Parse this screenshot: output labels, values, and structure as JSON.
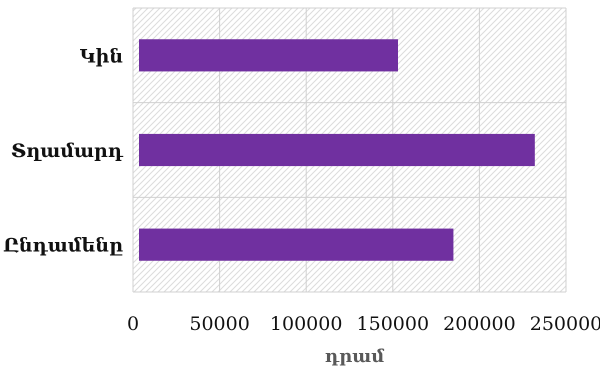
{
  "chart_data": {
    "type": "bar",
    "orientation": "horizontal",
    "categories": [
      "Կին",
      "Տղամարդ",
      "Ընդամենը"
    ],
    "values": [
      153000,
      232000,
      185000
    ],
    "title": "",
    "xlabel": "դրամ",
    "ylabel": "",
    "xlim": [
      0,
      250000
    ],
    "x_ticks": [
      0,
      50000,
      100000,
      150000,
      200000,
      250000
    ],
    "x_tick_labels": [
      "0",
      "50000",
      "100000",
      "150000",
      "200000",
      "250000"
    ],
    "grid": true,
    "legend": "none",
    "bar_color": "#7030A0",
    "plot_background": "hatched-light-gray"
  }
}
